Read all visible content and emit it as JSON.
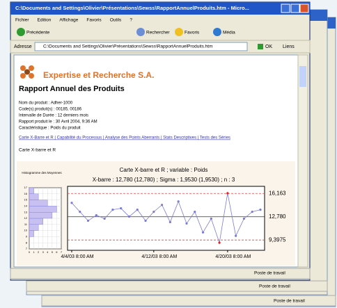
{
  "window": {
    "title": "C:\\Documents and Settings\\Olivier\\Présentations\\Sewss\\RapportAnnuelProduits.htm - Micro...",
    "status": [
      "Poste de travail",
      "Poste de travail",
      "Poste de travail"
    ]
  },
  "menu": [
    "Fichier",
    "Edition",
    "Affichage",
    "Favoris",
    "Outils",
    "?"
  ],
  "toolbar": [
    "Précédente",
    "Rechercher",
    "Favoris",
    "Média"
  ],
  "address": {
    "label": "Adresse",
    "url": "C:\\Documents and Settings\\Olivier\\Présentations\\Sewss\\RapportAnnuelProduits.htm",
    "go": "OK",
    "links": "Liens"
  },
  "report": {
    "company": "Expertise et Recherche S.A.",
    "title": "Rapport Annuel des Produits",
    "info": [
      "Nom du produit : Adher-1000",
      "Code(s) produit(s) : 00185, 00186",
      "Intervalle de Durée : 12 derniers mois",
      "Rapport produit le : 30 Avril 2004, 9:36 AM",
      "Caractéristique : Poids du produit"
    ],
    "links": "Carte X-Barre et R | Capabilité du Processus | Analyse des Points Aberrants | Stats Descriptives | Tests des Séries",
    "section": "Carte X-barre et R"
  },
  "control_chart": {
    "type": "line",
    "title": "Carte X-barre et R ; variable : Poids",
    "subtitle": "X-barre : 12,780 (12,780) ; Sigma : 1,9530 (1,9530) ; n : 3",
    "color": "#7b7bd6",
    "values": [
      14.8,
      13.5,
      12.2,
      13.0,
      12.5,
      13.8,
      14.0,
      12.8,
      13.8,
      12.2,
      13.5,
      14.5,
      12.0,
      15.0,
      11.8,
      13.5,
      10.5,
      12.5,
      9.0,
      16.2,
      10.0,
      12.5,
      13.5,
      13.8
    ],
    "ylim": [
      7.9,
      17.2
    ],
    "limits": [
      {
        "value": 16.163,
        "label": "16,163"
      },
      {
        "value": 12.78,
        "label": "12,780"
      },
      {
        "value": 9.3975,
        "label": "9,3975"
      }
    ],
    "x_labels": [
      "4/4/03 8:00 AM",
      "4/12/03 8:00 AM",
      "4/20/03 8:00 AM"
    ]
  },
  "histogram": {
    "title": "Histogramme des Moyennes",
    "bins": [
      7,
      8,
      9,
      10,
      11,
      12,
      13,
      14,
      15,
      16,
      17
    ],
    "counts": [
      0,
      0,
      1,
      2,
      3,
      5,
      6,
      4,
      2,
      1
    ],
    "xlim": [
      0,
      7
    ],
    "xticks": [
      0,
      1,
      2,
      3,
      4,
      5,
      6,
      7
    ]
  }
}
